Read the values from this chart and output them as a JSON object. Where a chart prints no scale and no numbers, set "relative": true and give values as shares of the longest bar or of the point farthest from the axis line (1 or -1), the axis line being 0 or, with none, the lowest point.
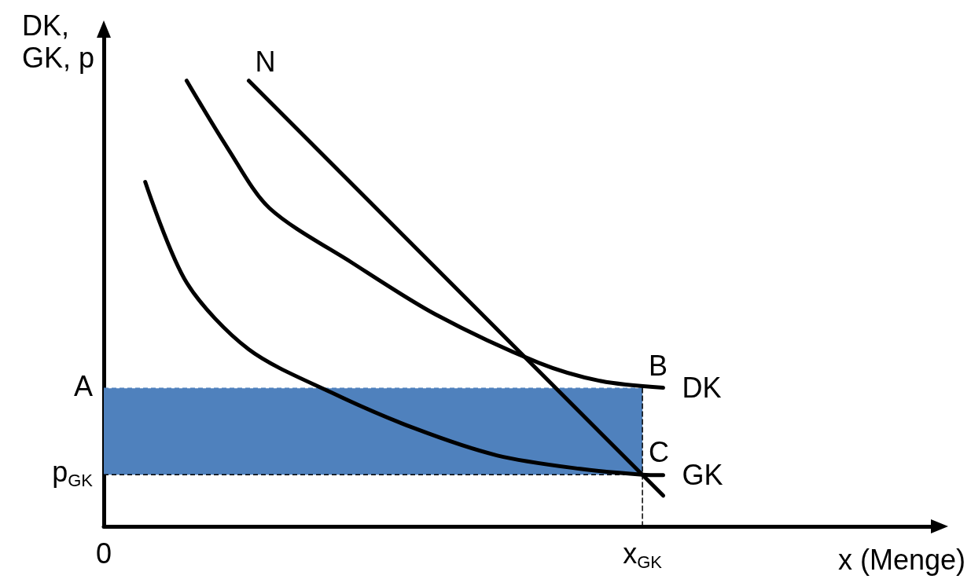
{
  "chart_data": {
    "type": "line",
    "relative": true,
    "xlabel": "x (Menge)",
    "ylabel": "DK, GK, p",
    "categories": [
      "0",
      null,
      null,
      null,
      null,
      null,
      null,
      null,
      null,
      null,
      null,
      null,
      null,
      null,
      null,
      null,
      null,
      null,
      null,
      null,
      null,
      null,
      null,
      null,
      null,
      null,
      "x$_{GK}$",
      null,
      null,
      null,
      null,
      null,
      null,
      null,
      null,
      null,
      null,
      null,
      null,
      null,
      null
    ],
    "marker": "none",
    "grid": false,
    "series": [
      {
        "type": "line",
        "color": "#4f81bd",
        "line_style": "dashed",
        "x": [
          "0",
          "x$_{GK}$"
        ],
        "values": [
          0.31,
          0.31
        ],
        "lower": [
          0.116,
          0.116
        ],
        "upper": [
          0.31,
          0.31
        ]
      },
      {
        "type": "line",
        "color": "#000000",
        "line_style": "dashed",
        "x": [
          "x$_{GK}$",
          "x$_{GK}$"
        ],
        "values": [
          0,
          0.31
        ]
      },
      {
        "name": "N",
        "color": "#000000",
        "line_style": "solid",
        "values": [
          null,
          null,
          null,
          null,
          null,
          null,
          null,
          1,
          null,
          null,
          null,
          null,
          null,
          null,
          null,
          null,
          null,
          null,
          null,
          null,
          null,
          null,
          null,
          null,
          null,
          null,
          null,
          0.069,
          null,
          null,
          null,
          null,
          null,
          null,
          null,
          null,
          null,
          null,
          null,
          null,
          null
        ]
      },
      {
        "name": "DK",
        "color": "#000000",
        "line_style": "solid",
        "values": [
          null,
          null,
          null,
          null,
          1,
          null,
          0.847,
          null,
          0.714,
          null,
          null,
          null,
          0.591,
          null,
          null,
          null,
          0.476,
          null,
          null,
          null,
          null,
          0.367,
          null,
          null,
          0.326,
          null,
          null,
          0.311,
          null,
          null,
          null,
          null,
          null,
          null,
          null,
          null,
          null,
          null,
          null,
          null,
          null
        ]
      },
      {
        "name": "GK",
        "color": "#000000",
        "line_style": "solid",
        "values": [
          null,
          null,
          0.773,
          null,
          0.547,
          null,
          null,
          0.397,
          null,
          null,
          null,
          0.3,
          null,
          null,
          null,
          0.22,
          null,
          null,
          null,
          0.159,
          null,
          null,
          null,
          0.129,
          null,
          null,
          0.116,
          0.115,
          null,
          null,
          null,
          null,
          null,
          null,
          null,
          null,
          null,
          null,
          null,
          null,
          null
        ]
      }
    ],
    "annotations": [
      "A",
      "p$_{GK}$",
      {
        "text": "B",
        "x": "x$_{GK}$",
        "y": 0.31
      },
      {
        "text": "C",
        "x": "x$_{GK}$",
        "y": 0.116
      }
    ]
  }
}
